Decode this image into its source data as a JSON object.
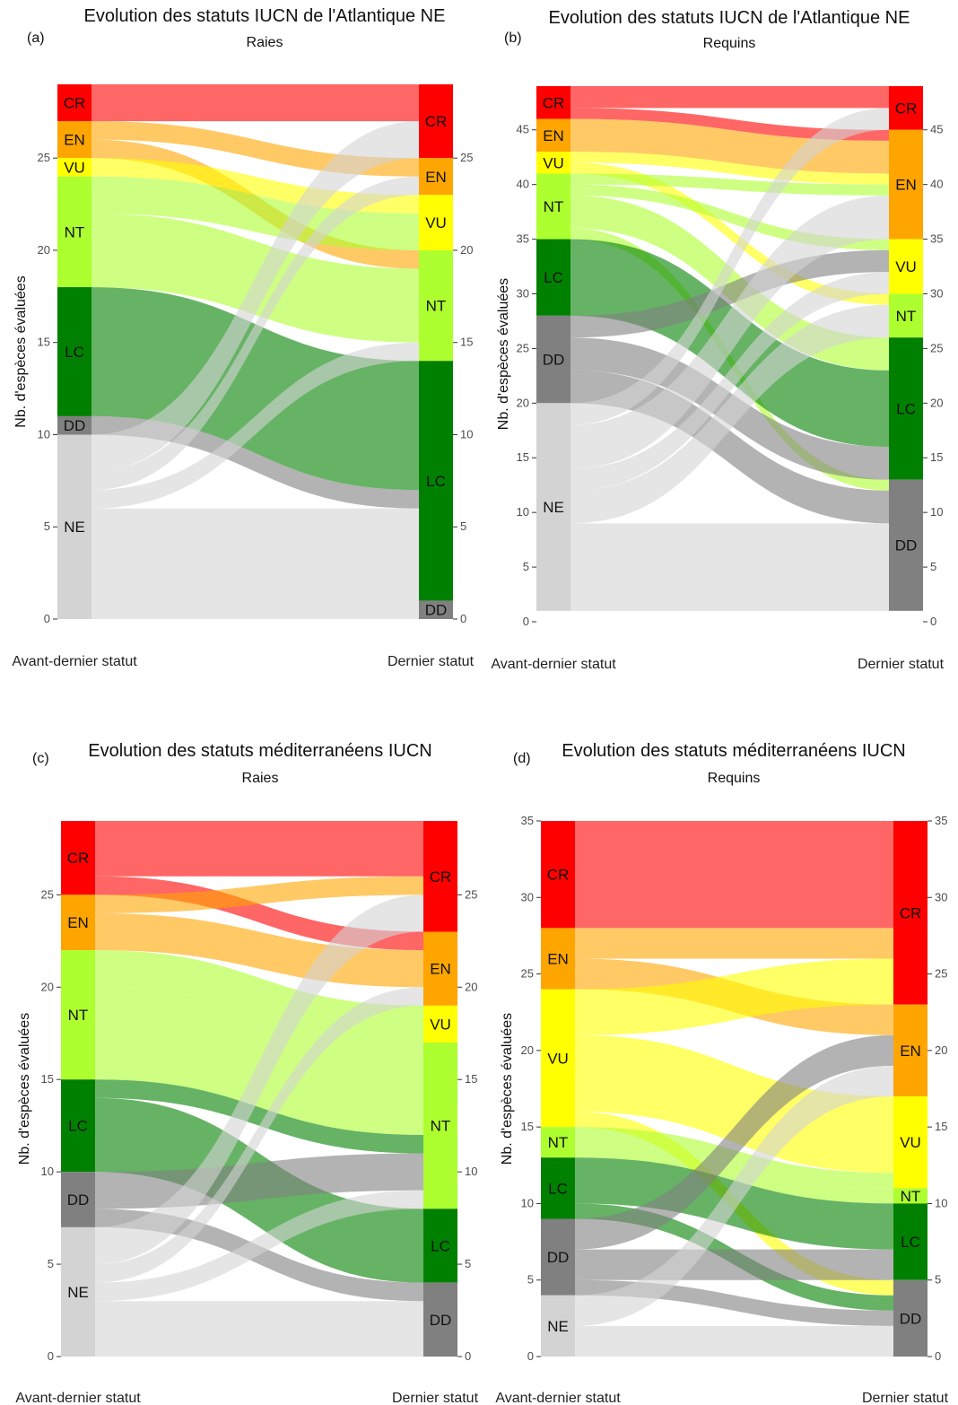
{
  "figure": {
    "x_labels": [
      "Avant-dernier statut",
      "Dernier statut"
    ],
    "y_axis_title": "Nb. d'espèces évaluées"
  },
  "colors": {
    "CR": "#ff0000",
    "EN": "#ffa500",
    "VU": "#ffff00",
    "NT": "#adff2f",
    "LC": "#008000",
    "DD": "#808080",
    "NE": "#d3d3d3"
  },
  "panels": [
    {
      "letter": "(a)",
      "title": "Evolution des statuts IUCN de l'Atlantique NE",
      "subtitle": "Raies",
      "right_axis": false
    },
    {
      "letter": "(b)",
      "title": "Evolution des statuts IUCN de l'Atlantique NE",
      "subtitle": "Requins",
      "right_axis": true
    },
    {
      "letter": "(c)",
      "title": "Evolution des statuts méditerranéens IUCN",
      "subtitle": "Raies",
      "right_axis": true
    },
    {
      "letter": "(d)",
      "title": "Evolution des statuts méditerranéens IUCN",
      "subtitle": "Requins",
      "right_axis": true
    }
  ],
  "chart_data": [
    {
      "type": "alluvial",
      "title": "Evolution des statuts IUCN de l'Atlantique NE",
      "subtitle": "Raies",
      "xlabel": "",
      "ylabel": "Nb. d'espèces évaluées",
      "ylim": [
        0,
        29
      ],
      "yticks": [
        0,
        5,
        10,
        15,
        20,
        25
      ],
      "order": [
        "CR",
        "EN",
        "VU",
        "NT",
        "LC",
        "DD",
        "NE"
      ],
      "axes": [
        "Avant-dernier statut",
        "Dernier statut"
      ],
      "flows": [
        {
          "from": "CR",
          "to": "CR",
          "value": 2
        },
        {
          "from": "EN",
          "to": "EN",
          "value": 1
        },
        {
          "from": "EN",
          "to": "NT",
          "value": 1
        },
        {
          "from": "VU",
          "to": "VU",
          "value": 1
        },
        {
          "from": "NT",
          "to": "VU",
          "value": 2
        },
        {
          "from": "NT",
          "to": "NT",
          "value": 4
        },
        {
          "from": "LC",
          "to": "LC",
          "value": 7
        },
        {
          "from": "DD",
          "to": "LC",
          "value": 1
        },
        {
          "from": "NE",
          "to": "CR",
          "value": 2
        },
        {
          "from": "NE",
          "to": "EN",
          "value": 1
        },
        {
          "from": "NE",
          "to": "NT",
          "value": 1
        },
        {
          "from": "NE",
          "to": "LC",
          "value": 2
        },
        {
          "from": "NE",
          "to": "DD",
          "value": 1
        },
        {
          "from": "NE",
          "to": "LC",
          "value": 3
        }
      ]
    },
    {
      "type": "alluvial",
      "title": "Evolution des statuts IUCN de l'Atlantique NE",
      "subtitle": "Requins",
      "xlabel": "",
      "ylabel": "Nb. d'espèces évaluées",
      "ylim": [
        0,
        49
      ],
      "yticks": [
        0,
        5,
        10,
        15,
        20,
        25,
        30,
        35,
        40,
        45
      ],
      "order": [
        "CR",
        "EN",
        "VU",
        "NT",
        "LC",
        "DD",
        "NE"
      ],
      "axes": [
        "Avant-dernier statut",
        "Dernier statut"
      ],
      "flows": [
        {
          "from": "CR",
          "to": "CR",
          "value": 2
        },
        {
          "from": "CR",
          "to": "EN",
          "value": 1
        },
        {
          "from": "EN",
          "to": "EN",
          "value": 3
        },
        {
          "from": "VU",
          "to": "EN",
          "value": 1
        },
        {
          "from": "VU",
          "to": "NT",
          "value": 1
        },
        {
          "from": "NT",
          "to": "EN",
          "value": 1
        },
        {
          "from": "NT",
          "to": "LC",
          "value": 3
        },
        {
          "from": "NT",
          "to": "VU",
          "value": 1
        },
        {
          "from": "NT",
          "to": "DD",
          "value": 1
        },
        {
          "from": "LC",
          "to": "LC",
          "value": 7
        },
        {
          "from": "DD",
          "to": "VU",
          "value": 2
        },
        {
          "from": "DD",
          "to": "LC",
          "value": 3
        },
        {
          "from": "DD",
          "to": "DD",
          "value": 3
        },
        {
          "from": "NE",
          "to": "CR",
          "value": 2
        },
        {
          "from": "NE",
          "to": "EN",
          "value": 4
        },
        {
          "from": "NE",
          "to": "VU",
          "value": 2
        },
        {
          "from": "NE",
          "to": "NT",
          "value": 3
        },
        {
          "from": "NE",
          "to": "DD",
          "value": 2
        },
        {
          "from": "NE",
          "to": "DD",
          "value": 6
        }
      ]
    },
    {
      "type": "alluvial",
      "title": "Evolution des statuts méditerranéens IUCN",
      "subtitle": "Raies",
      "xlabel": "",
      "ylabel": "Nb. d'espèces évaluées",
      "ylim": [
        0,
        29
      ],
      "yticks": [
        0,
        5,
        10,
        15,
        20,
        25
      ],
      "order": [
        "CR",
        "EN",
        "VU",
        "NT",
        "LC",
        "DD",
        "NE"
      ],
      "axes": [
        "Avant-dernier statut",
        "Dernier statut"
      ],
      "flows": [
        {
          "from": "CR",
          "to": "CR",
          "value": 3
        },
        {
          "from": "CR",
          "to": "EN",
          "value": 1
        },
        {
          "from": "EN",
          "to": "CR",
          "value": 1
        },
        {
          "from": "EN",
          "to": "EN",
          "value": 2
        },
        {
          "from": "NT",
          "to": "VU",
          "value": 2
        },
        {
          "from": "NT",
          "to": "NT",
          "value": 5
        },
        {
          "from": "LC",
          "to": "NT",
          "value": 1
        },
        {
          "from": "LC",
          "to": "LC",
          "value": 4
        },
        {
          "from": "DD",
          "to": "NT",
          "value": 2
        },
        {
          "from": "DD",
          "to": "DD",
          "value": 1
        },
        {
          "from": "NE",
          "to": "CR",
          "value": 2
        },
        {
          "from": "NE",
          "to": "EN",
          "value": 1
        },
        {
          "from": "NE",
          "to": "DD",
          "value": 2
        },
        {
          "from": "NE",
          "to": "NT",
          "value": 1
        },
        {
          "from": "NE",
          "to": "DD",
          "value": 1
        }
      ]
    },
    {
      "type": "alluvial",
      "title": "Evolution des statuts méditerranéens IUCN",
      "subtitle": "Requins",
      "xlabel": "",
      "ylabel": "Nb. d'espèces évaluées",
      "ylim": [
        0,
        35
      ],
      "yticks": [
        0,
        5,
        10,
        15,
        20,
        25,
        30,
        35
      ],
      "order": [
        "CR",
        "EN",
        "VU",
        "NT",
        "LC",
        "DD",
        "NE"
      ],
      "axes": [
        "Avant-dernier statut",
        "Dernier statut"
      ],
      "flows": [
        {
          "from": "CR",
          "to": "CR",
          "value": 7
        },
        {
          "from": "EN",
          "to": "EN",
          "value": 2
        },
        {
          "from": "EN",
          "to": "CR",
          "value": 2
        },
        {
          "from": "VU",
          "to": "CR",
          "value": 3
        },
        {
          "from": "VU",
          "to": "VU",
          "value": 5
        },
        {
          "from": "VU",
          "to": "DD",
          "value": 1
        },
        {
          "from": "NT",
          "to": "NT",
          "value": 1
        },
        {
          "from": "NT",
          "to": "VU",
          "value": 1
        },
        {
          "from": "LC",
          "to": "LC",
          "value": 3
        },
        {
          "from": "LC",
          "to": "DD",
          "value": 1
        },
        {
          "from": "DD",
          "to": "EN",
          "value": 2
        },
        {
          "from": "DD",
          "to": "LC",
          "value": 2
        },
        {
          "from": "DD",
          "to": "DD",
          "value": 1
        },
        {
          "from": "NE",
          "to": "EN",
          "value": 2
        },
        {
          "from": "NE",
          "to": "DD",
          "value": 2
        }
      ]
    }
  ]
}
